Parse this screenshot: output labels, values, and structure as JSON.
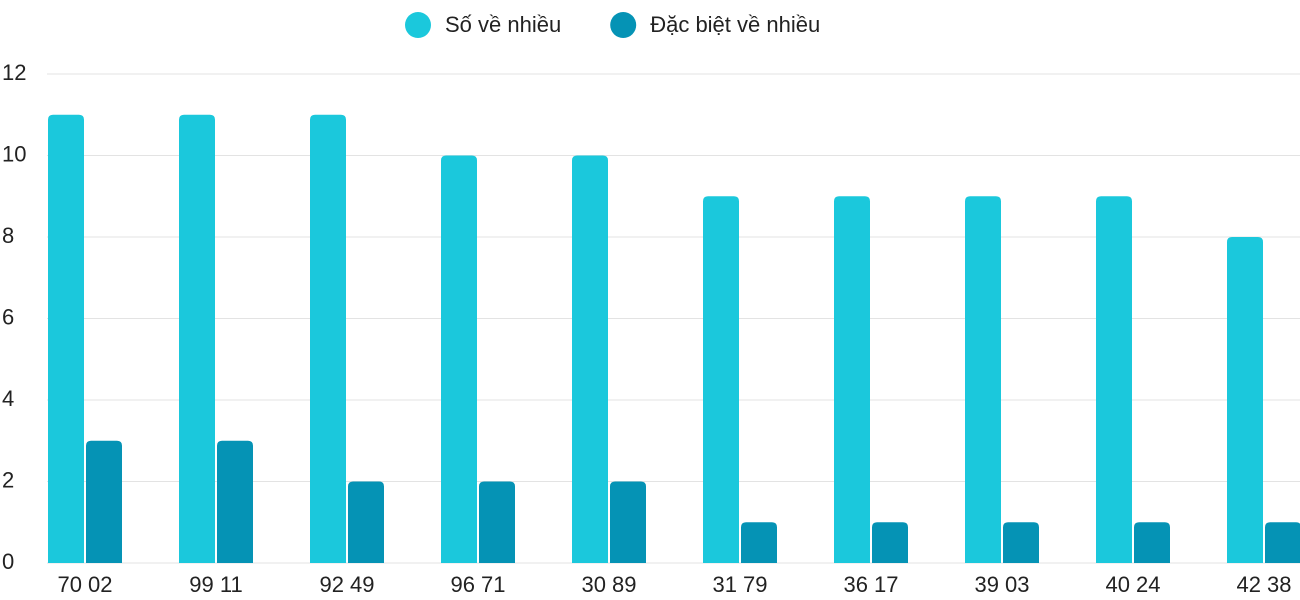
{
  "chart_data": {
    "type": "bar",
    "categories": [
      "70 02",
      "99 11",
      "92 49",
      "96 71",
      "30 89",
      "31 79",
      "36 17",
      "39 03",
      "40 24",
      "42 38"
    ],
    "series": [
      {
        "name": "Số về nhiều",
        "color": "#1bc8dc",
        "values": [
          11,
          11,
          11,
          10,
          10,
          9,
          9,
          9,
          9,
          8
        ]
      },
      {
        "name": "Đặc biệt về nhiều",
        "color": "#0593b5",
        "values": [
          3,
          3,
          2,
          2,
          2,
          1,
          1,
          1,
          1,
          1
        ]
      }
    ],
    "ylim": [
      0,
      12
    ],
    "yticks": [
      0,
      2,
      4,
      6,
      8,
      10,
      12
    ],
    "grid": true
  }
}
